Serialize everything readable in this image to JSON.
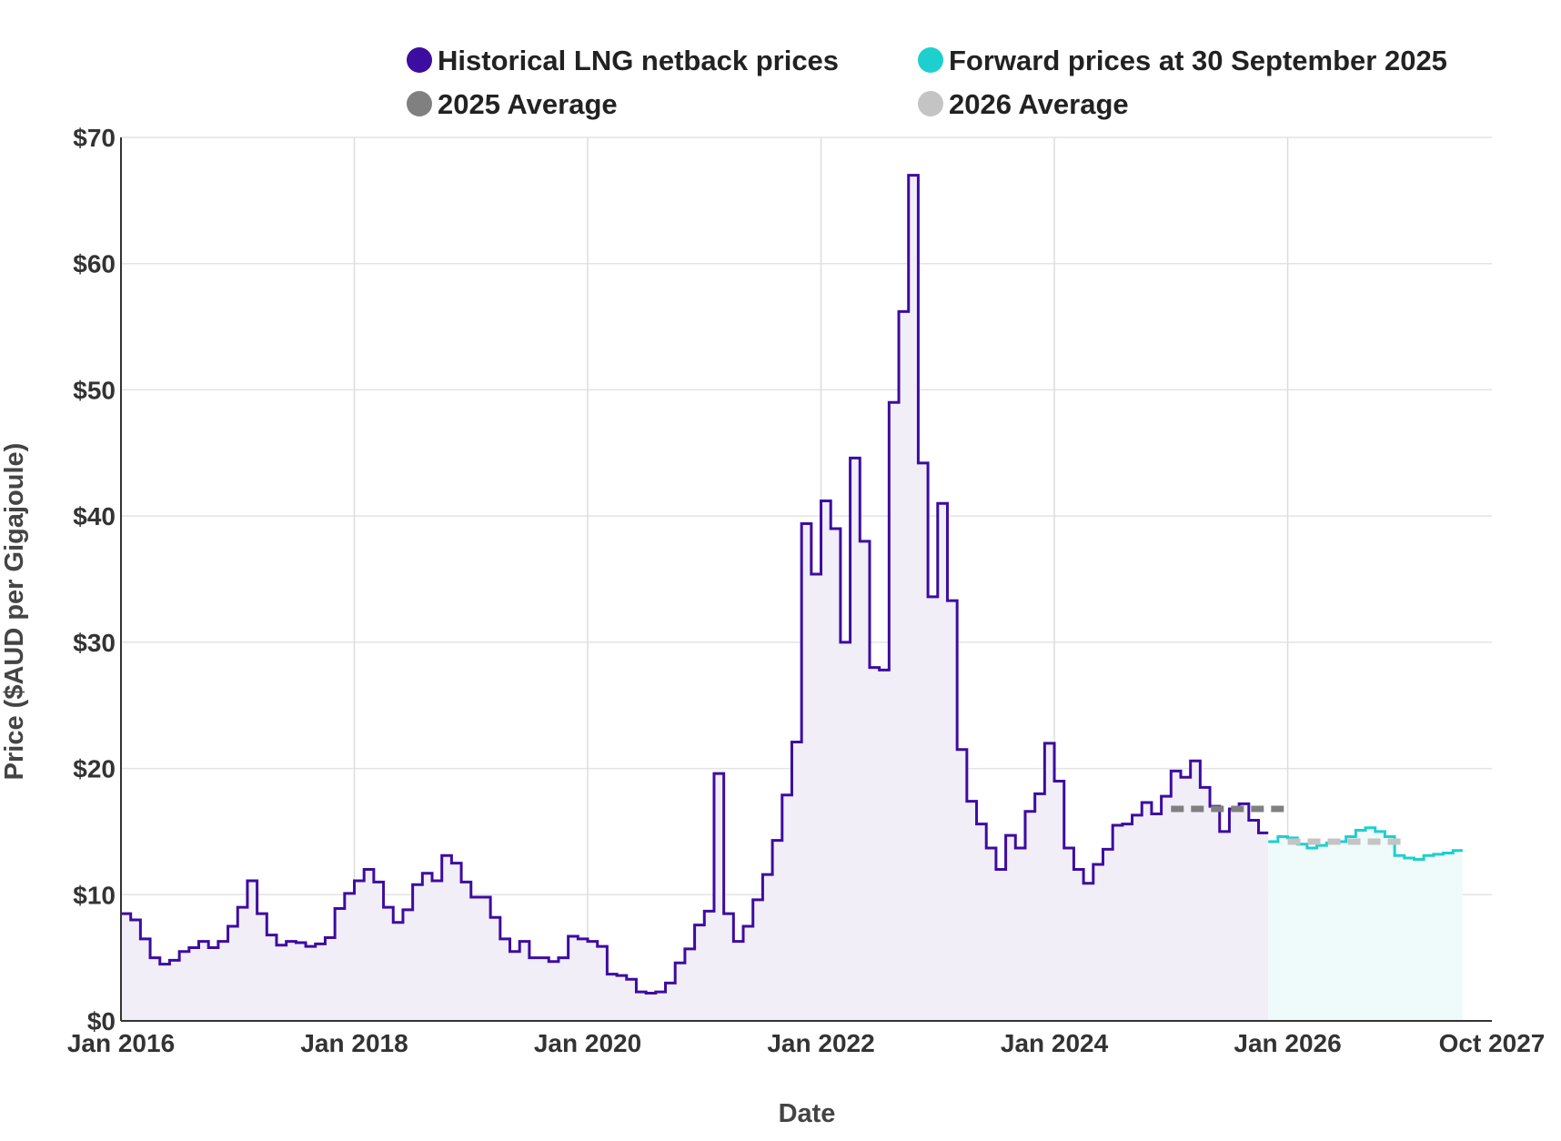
{
  "chart_data": {
    "type": "line",
    "title": "",
    "xlabel": "Date",
    "ylabel": "Price ($AUD per Gigajoule)",
    "ylim": [
      0,
      70
    ],
    "xlim": [
      "2016-01",
      "2027-10"
    ],
    "grid": true,
    "legend_position": "top",
    "y_ticks": [
      {
        "value": 0,
        "label": "$0"
      },
      {
        "value": 10,
        "label": "$10"
      },
      {
        "value": 20,
        "label": "$20"
      },
      {
        "value": 30,
        "label": "$30"
      },
      {
        "value": 40,
        "label": "$40"
      },
      {
        "value": 50,
        "label": "$50"
      },
      {
        "value": 60,
        "label": "$60"
      },
      {
        "value": 70,
        "label": "$70"
      }
    ],
    "x_ticks": [
      {
        "month": 0,
        "label": "Jan 2016"
      },
      {
        "month": 24,
        "label": "Jan 2018"
      },
      {
        "month": 48,
        "label": "Jan 2020"
      },
      {
        "month": 72,
        "label": "Jan 2022"
      },
      {
        "month": 96,
        "label": "Jan 2024"
      },
      {
        "month": 120,
        "label": "Jan 2026"
      },
      {
        "month": 141,
        "label": "Oct 2027"
      }
    ],
    "legend": [
      {
        "name": "Historical LNG netback prices",
        "color": "#3d0ca0"
      },
      {
        "name": "Forward prices at 30 September 2025",
        "color": "#1ecfcf"
      },
      {
        "name": "2025 Average",
        "color": "#808080"
      },
      {
        "name": "2026 Average",
        "color": "#c4c4c4"
      }
    ],
    "series": [
      {
        "name": "Historical LNG netback prices",
        "type": "step",
        "start": "2016-01",
        "color": "#3d0ca0",
        "fill": "#f1eef8",
        "values": [
          8.5,
          8.0,
          6.5,
          5.0,
          4.5,
          4.8,
          5.5,
          5.8,
          6.3,
          5.8,
          6.3,
          7.5,
          9.0,
          11.1,
          8.5,
          6.8,
          6.0,
          6.3,
          6.2,
          5.9,
          6.1,
          6.6,
          8.9,
          10.1,
          11.1,
          12.0,
          11.0,
          9.0,
          7.8,
          8.8,
          10.8,
          11.7,
          11.1,
          13.1,
          12.5,
          11.0,
          9.8,
          9.8,
          8.2,
          6.5,
          5.5,
          6.3,
          5.0,
          5.0,
          4.7,
          5.0,
          6.7,
          6.5,
          6.3,
          5.9,
          3.7,
          3.6,
          3.3,
          2.3,
          2.2,
          2.3,
          3.0,
          4.6,
          5.7,
          7.6,
          8.7,
          19.6,
          8.5,
          6.3,
          7.5,
          9.6,
          11.6,
          14.3,
          17.9,
          22.1,
          39.4,
          35.4,
          41.2,
          39.0,
          30.0,
          44.6,
          38.0,
          28.0,
          27.8,
          49.0,
          56.2,
          67.0,
          44.2,
          33.6,
          41.0,
          33.3,
          21.5,
          17.4,
          15.6,
          13.7,
          12.0,
          14.7,
          13.7,
          16.6,
          18.0,
          22.0,
          19.0,
          13.7,
          12.0,
          10.9,
          12.4,
          13.6,
          15.5,
          15.6,
          16.3,
          17.3,
          16.4,
          17.8,
          19.8,
          19.3,
          20.6,
          18.5,
          17.0,
          15.0,
          16.8,
          17.2,
          15.9,
          14.9
        ]
      },
      {
        "name": "Forward prices at 30 September 2025",
        "type": "step",
        "start": "2025-11",
        "color": "#1ecfcf",
        "fill": "#effbfb",
        "values": [
          14.2,
          14.6,
          14.5,
          14.0,
          13.7,
          13.9,
          14.1,
          14.2,
          14.6,
          15.1,
          15.3,
          15.0,
          14.6,
          13.1,
          12.9,
          12.8,
          13.1,
          13.2,
          13.3,
          13.5
        ]
      },
      {
        "name": "2025 Average",
        "type": "dashed-step",
        "start": "2025-01",
        "end": "2026-01",
        "color": "#808080",
        "values": [
          16.8
        ]
      },
      {
        "name": "2026 Average",
        "type": "dashed-step",
        "start": "2026-01",
        "end": "2027-01",
        "color": "#c4c4c4",
        "values": [
          14.2
        ]
      }
    ]
  }
}
